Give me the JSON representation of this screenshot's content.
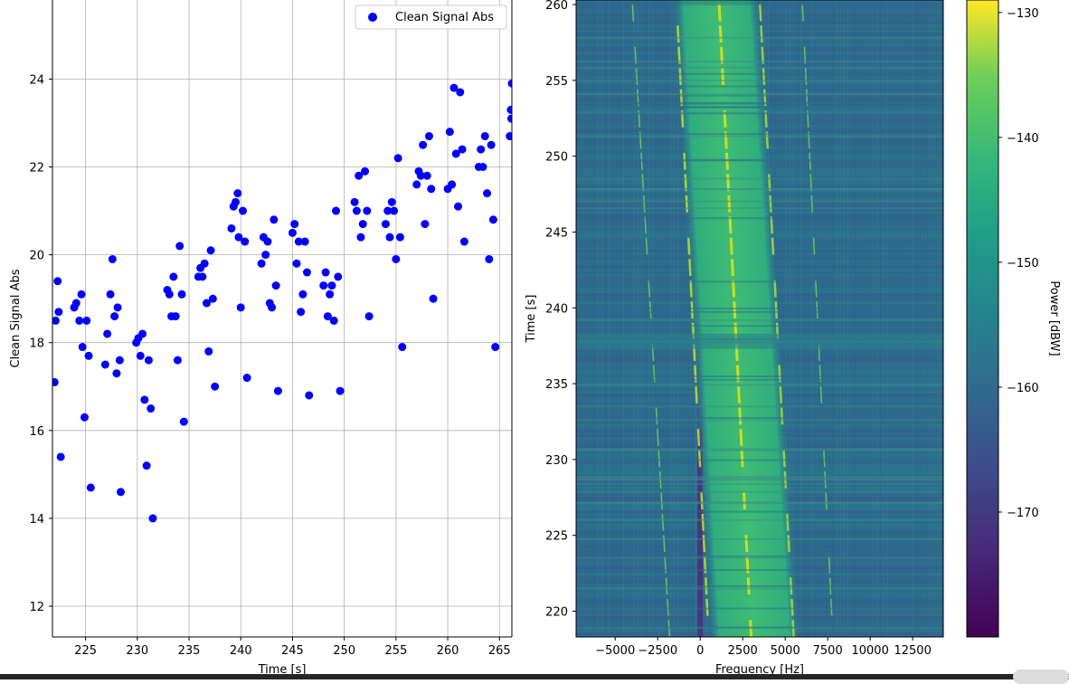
{
  "chart_data": [
    {
      "type": "scatter",
      "xlabel": "Time [s]",
      "ylabel": "Clean Signal Abs",
      "xlim": [
        221.8,
        266.2
      ],
      "ylim": [
        11.3,
        25.8
      ],
      "x_ticks": [
        225,
        230,
        235,
        240,
        245,
        250,
        255,
        260,
        265
      ],
      "y_ticks": [
        12,
        14,
        16,
        18,
        20,
        22,
        24
      ],
      "grid": true,
      "legend": {
        "position": "top-right",
        "entries": [
          "Clean Signal Abs"
        ]
      },
      "series": [
        {
          "name": "Clean Signal Abs",
          "color": "#0000ff",
          "points": [
            [
              222.0,
              17.1
            ],
            [
              222.1,
              18.5
            ],
            [
              222.3,
              19.4
            ],
            [
              222.4,
              18.7
            ],
            [
              222.6,
              15.4
            ],
            [
              223.9,
              18.8
            ],
            [
              224.1,
              18.9
            ],
            [
              224.4,
              18.5
            ],
            [
              224.6,
              19.1
            ],
            [
              224.7,
              17.9
            ],
            [
              224.9,
              16.3
            ],
            [
              225.1,
              18.5
            ],
            [
              225.3,
              17.7
            ],
            [
              225.5,
              14.7
            ],
            [
              226.9,
              17.5
            ],
            [
              227.1,
              18.2
            ],
            [
              227.4,
              19.1
            ],
            [
              227.6,
              19.9
            ],
            [
              227.8,
              18.6
            ],
            [
              228.0,
              17.3
            ],
            [
              228.1,
              18.8
            ],
            [
              228.3,
              17.6
            ],
            [
              228.4,
              14.6
            ],
            [
              229.9,
              18.0
            ],
            [
              230.1,
              18.1
            ],
            [
              230.3,
              17.7
            ],
            [
              230.5,
              18.2
            ],
            [
              230.7,
              16.7
            ],
            [
              230.9,
              15.2
            ],
            [
              231.1,
              17.6
            ],
            [
              231.3,
              16.5
            ],
            [
              231.5,
              14.0
            ],
            [
              232.9,
              19.2
            ],
            [
              233.1,
              19.1
            ],
            [
              233.3,
              18.6
            ],
            [
              233.5,
              19.5
            ],
            [
              233.7,
              18.6
            ],
            [
              233.9,
              17.6
            ],
            [
              234.1,
              20.2
            ],
            [
              234.3,
              19.1
            ],
            [
              234.5,
              16.2
            ],
            [
              235.9,
              19.5
            ],
            [
              236.1,
              19.7
            ],
            [
              236.3,
              19.5
            ],
            [
              236.5,
              19.8
            ],
            [
              236.7,
              18.9
            ],
            [
              236.9,
              17.8
            ],
            [
              237.1,
              20.1
            ],
            [
              237.3,
              19.0
            ],
            [
              237.5,
              17.0
            ],
            [
              239.1,
              20.6
            ],
            [
              239.3,
              21.1
            ],
            [
              239.5,
              21.2
            ],
            [
              239.7,
              21.4
            ],
            [
              239.8,
              20.4
            ],
            [
              240.0,
              18.8
            ],
            [
              240.2,
              21.0
            ],
            [
              240.4,
              20.3
            ],
            [
              240.6,
              17.2
            ],
            [
              242.0,
              19.8
            ],
            [
              242.2,
              20.4
            ],
            [
              242.4,
              20.0
            ],
            [
              242.6,
              20.3
            ],
            [
              242.8,
              18.9
            ],
            [
              243.0,
              18.8
            ],
            [
              243.2,
              20.8
            ],
            [
              243.4,
              19.3
            ],
            [
              243.6,
              16.9
            ],
            [
              245.0,
              20.5
            ],
            [
              245.2,
              20.7
            ],
            [
              245.4,
              19.8
            ],
            [
              245.6,
              20.3
            ],
            [
              245.8,
              18.7
            ],
            [
              246.0,
              19.1
            ],
            [
              246.2,
              20.3
            ],
            [
              246.4,
              19.6
            ],
            [
              246.6,
              16.8
            ],
            [
              248.0,
              19.3
            ],
            [
              248.2,
              19.6
            ],
            [
              248.4,
              18.6
            ],
            [
              248.6,
              19.1
            ],
            [
              248.8,
              19.3
            ],
            [
              249.0,
              18.5
            ],
            [
              249.2,
              21.0
            ],
            [
              249.4,
              19.5
            ],
            [
              249.6,
              16.9
            ],
            [
              251.0,
              21.2
            ],
            [
              251.2,
              21.0
            ],
            [
              251.4,
              21.8
            ],
            [
              251.6,
              20.4
            ],
            [
              251.8,
              20.7
            ],
            [
              252.0,
              21.9
            ],
            [
              252.2,
              21.0
            ],
            [
              252.4,
              18.6
            ],
            [
              254.0,
              20.7
            ],
            [
              254.2,
              21.0
            ],
            [
              254.4,
              20.4
            ],
            [
              254.6,
              21.2
            ],
            [
              254.8,
              21.0
            ],
            [
              255.0,
              19.9
            ],
            [
              255.2,
              22.2
            ],
            [
              255.4,
              20.4
            ],
            [
              255.6,
              17.9
            ],
            [
              257.0,
              21.6
            ],
            [
              257.2,
              21.9
            ],
            [
              257.4,
              21.8
            ],
            [
              257.6,
              22.5
            ],
            [
              257.8,
              20.7
            ],
            [
              258.0,
              21.8
            ],
            [
              258.2,
              22.7
            ],
            [
              258.4,
              21.5
            ],
            [
              258.6,
              19.0
            ],
            [
              260.0,
              21.5
            ],
            [
              260.2,
              22.8
            ],
            [
              260.4,
              21.6
            ],
            [
              260.6,
              23.8
            ],
            [
              260.8,
              22.3
            ],
            [
              261.0,
              21.1
            ],
            [
              261.2,
              23.7
            ],
            [
              261.4,
              22.4
            ],
            [
              261.6,
              20.3
            ],
            [
              263.0,
              22.0
            ],
            [
              263.2,
              22.4
            ],
            [
              263.4,
              22.0
            ],
            [
              263.6,
              22.7
            ],
            [
              263.8,
              21.4
            ],
            [
              264.0,
              19.9
            ],
            [
              264.2,
              22.5
            ],
            [
              264.4,
              20.8
            ],
            [
              264.6,
              17.9
            ],
            [
              266.0,
              22.7
            ],
            [
              266.1,
              23.3
            ],
            [
              266.15,
              23.1
            ],
            [
              266.2,
              23.9
            ]
          ]
        }
      ]
    },
    {
      "type": "heatmap",
      "xlabel": "Frequency [Hz]",
      "ylabel": "Time [s]",
      "xlim": [
        -7300,
        14300
      ],
      "ylim": [
        218.3,
        260.3
      ],
      "x_ticks": [
        -5000,
        -2500,
        0,
        2500,
        5000,
        7500,
        10000,
        12500
      ],
      "x_tick_labels": [
        "−5000",
        "−2500",
        "0",
        "2500",
        "5000",
        "7500",
        "10000",
        "12500"
      ],
      "y_ticks": [
        220,
        225,
        230,
        235,
        240,
        245,
        250,
        255,
        260
      ],
      "colormap": "viridis",
      "colorbar": {
        "label": "Power [dBW]",
        "range": [
          -180,
          -129
        ],
        "ticks": [
          -130,
          -140,
          -150,
          -160,
          -170
        ],
        "tick_labels": [
          "−130",
          "−140",
          "−150",
          "−160",
          "−170"
        ]
      }
    }
  ]
}
